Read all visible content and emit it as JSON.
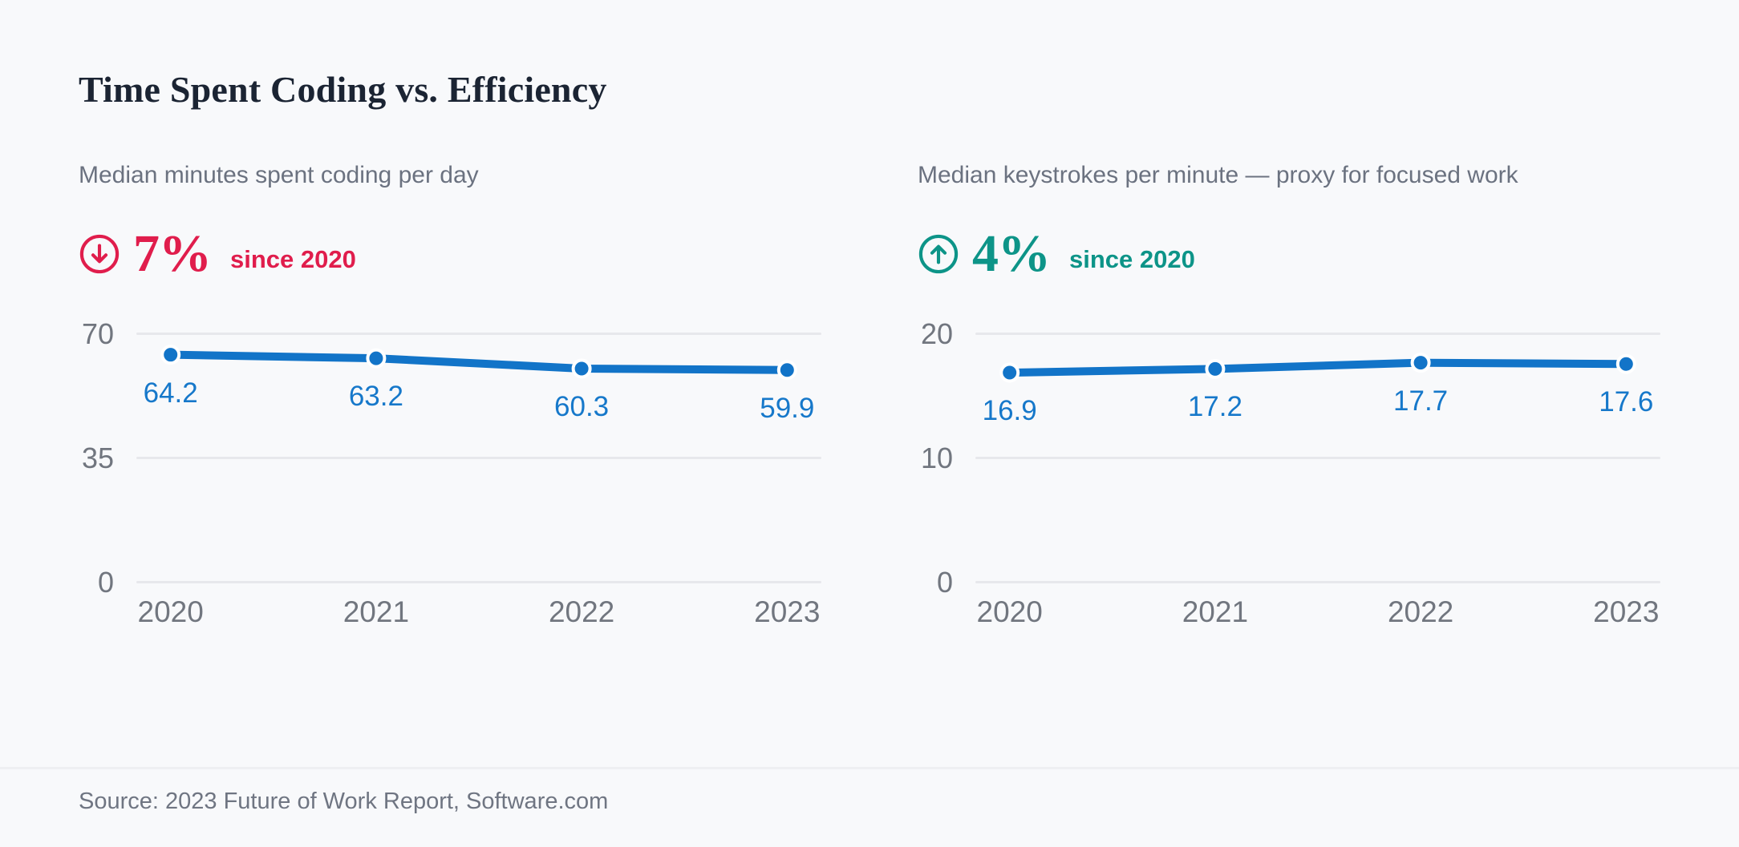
{
  "page": {
    "title": "Time Spent Coding vs. Efficiency",
    "source": "Source: 2023 Future of Work Report, Software.com"
  },
  "colors": {
    "background": "#F8F9FB",
    "title_text": "#1B2433",
    "muted_text": "#6B7280",
    "axis_text": "#71767F",
    "gridline": "#E7E8EC",
    "line_blue": "#1274C8",
    "data_label_blue": "#1678CA",
    "decrease_red": "#E01D4C",
    "increase_teal": "#0D9488"
  },
  "chart_data": [
    {
      "type": "line",
      "title": "Median minutes spent coding per day",
      "stat": {
        "icon": "arrow-down-circle-icon",
        "direction": "down",
        "value": "7%",
        "caption": "since 2020"
      },
      "x": [
        "2020",
        "2021",
        "2022",
        "2023"
      ],
      "values": [
        64.2,
        63.2,
        60.3,
        59.9
      ],
      "point_labels": [
        "64.2",
        "63.2",
        "60.3",
        "59.9"
      ],
      "ylim": [
        0,
        70
      ],
      "yticks": [
        0,
        35,
        70
      ],
      "ytick_labels": [
        "0",
        "35",
        "70"
      ],
      "grid": true,
      "legend": "none",
      "line_color": "#1274C8"
    },
    {
      "type": "line",
      "title": "Median keystrokes per minute — proxy for focused work",
      "stat": {
        "icon": "arrow-up-circle-icon",
        "direction": "up",
        "value": "4%",
        "caption": "since 2020"
      },
      "x": [
        "2020",
        "2021",
        "2022",
        "2023"
      ],
      "values": [
        16.9,
        17.2,
        17.7,
        17.6
      ],
      "point_labels": [
        "16.9",
        "17.2",
        "17.7",
        "17.6"
      ],
      "ylim": [
        0,
        20
      ],
      "yticks": [
        0,
        10,
        20
      ],
      "ytick_labels": [
        "0",
        "10",
        "20"
      ],
      "grid": true,
      "legend": "none",
      "line_color": "#1274C8"
    }
  ]
}
